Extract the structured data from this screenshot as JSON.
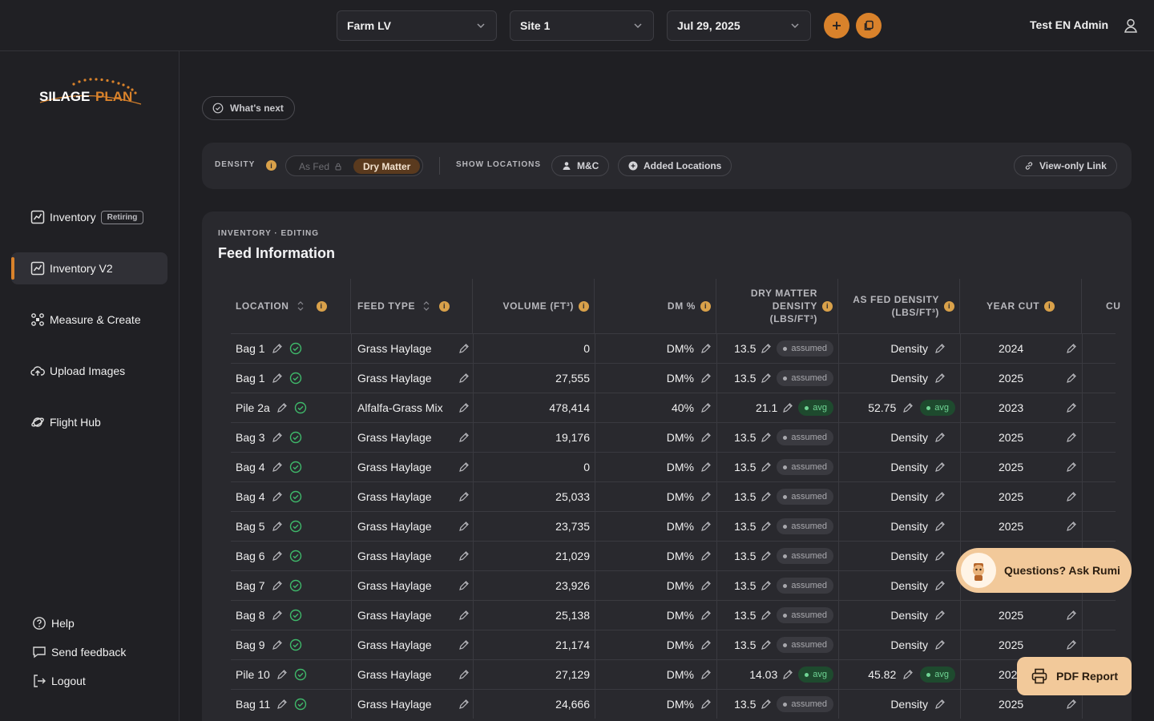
{
  "header": {
    "farm_select": "Farm LV",
    "site_select": "Site 1",
    "date_select": "Jul 29, 2025",
    "user_name": "Test EN Admin"
  },
  "sidebar": {
    "logo_text": "SILAGEPLAN",
    "items": [
      {
        "label": "Inventory",
        "badge": "Retiring"
      },
      {
        "label": "Inventory V2"
      },
      {
        "label": "Measure & Create"
      },
      {
        "label": "Upload Images"
      },
      {
        "label": "Flight Hub"
      }
    ],
    "help": "Help",
    "feedback": "Send feedback",
    "logout": "Logout"
  },
  "whats_next": "What's next",
  "filters": {
    "density_label": "DENSITY",
    "as_fed": "As Fed",
    "dry_matter": "Dry Matter",
    "show_locations_label": "SHOW LOCATIONS",
    "mc": "M&C",
    "added_locations": "Added Locations",
    "view_only_link": "View-only Link"
  },
  "card": {
    "subtitle": "INVENTORY · EDITING",
    "title": "Feed Information"
  },
  "table": {
    "headers": {
      "location": "LOCATION",
      "feed_type": "FEED TYPE",
      "volume": "VOLUME (FT³)",
      "dm": "DM %",
      "dm_density_1": "DRY MATTER",
      "dm_density_2": "DENSITY",
      "dm_density_3": "(LBS/FT³)",
      "af_density_1": "AS FED DENSITY",
      "af_density_2": "(LBS/FT³)",
      "year_cut": "YEAR CUT",
      "cu": "CU"
    },
    "rows": [
      {
        "location": "Bag 1",
        "feed": "Grass Haylage",
        "volume": "0",
        "dm": "DM%",
        "dmd": "13.5",
        "dmd_tag": "assumed",
        "afd": "Density",
        "afd_tag": "",
        "year": "2024"
      },
      {
        "location": "Bag 1",
        "feed": "Grass Haylage",
        "volume": "27,555",
        "dm": "DM%",
        "dmd": "13.5",
        "dmd_tag": "assumed",
        "afd": "Density",
        "afd_tag": "",
        "year": "2025"
      },
      {
        "location": "Pile 2a",
        "feed": "Alfalfa-Grass Mix",
        "volume": "478,414",
        "dm": "40%",
        "dmd": "21.1",
        "dmd_tag": "avg",
        "afd": "52.75",
        "afd_tag": "avg",
        "year": "2023"
      },
      {
        "location": "Bag 3",
        "feed": "Grass Haylage",
        "volume": "19,176",
        "dm": "DM%",
        "dmd": "13.5",
        "dmd_tag": "assumed",
        "afd": "Density",
        "afd_tag": "",
        "year": "2025"
      },
      {
        "location": "Bag 4",
        "feed": "Grass Haylage",
        "volume": "0",
        "dm": "DM%",
        "dmd": "13.5",
        "dmd_tag": "assumed",
        "afd": "Density",
        "afd_tag": "",
        "year": "2025"
      },
      {
        "location": "Bag 4",
        "feed": "Grass Haylage",
        "volume": "25,033",
        "dm": "DM%",
        "dmd": "13.5",
        "dmd_tag": "assumed",
        "afd": "Density",
        "afd_tag": "",
        "year": "2025"
      },
      {
        "location": "Bag 5",
        "feed": "Grass Haylage",
        "volume": "23,735",
        "dm": "DM%",
        "dmd": "13.5",
        "dmd_tag": "assumed",
        "afd": "Density",
        "afd_tag": "",
        "year": "2025"
      },
      {
        "location": "Bag 6",
        "feed": "Grass Haylage",
        "volume": "21,029",
        "dm": "DM%",
        "dmd": "13.5",
        "dmd_tag": "assumed",
        "afd": "Density",
        "afd_tag": "",
        "year": ""
      },
      {
        "location": "Bag 7",
        "feed": "Grass Haylage",
        "volume": "23,926",
        "dm": "DM%",
        "dmd": "13.5",
        "dmd_tag": "assumed",
        "afd": "Density",
        "afd_tag": "",
        "year": ""
      },
      {
        "location": "Bag 8",
        "feed": "Grass Haylage",
        "volume": "25,138",
        "dm": "DM%",
        "dmd": "13.5",
        "dmd_tag": "assumed",
        "afd": "Density",
        "afd_tag": "",
        "year": "2025"
      },
      {
        "location": "Bag 9",
        "feed": "Grass Haylage",
        "volume": "21,174",
        "dm": "DM%",
        "dmd": "13.5",
        "dmd_tag": "assumed",
        "afd": "Density",
        "afd_tag": "",
        "year": "2025"
      },
      {
        "location": "Pile 10",
        "feed": "Grass Haylage",
        "volume": "27,129",
        "dm": "DM%",
        "dmd": "14.03",
        "dmd_tag": "avg",
        "afd": "45.82",
        "afd_tag": "avg",
        "year": "202"
      },
      {
        "location": "Bag 11",
        "feed": "Grass Haylage",
        "volume": "24,666",
        "dm": "DM%",
        "dmd": "13.5",
        "dmd_tag": "assumed",
        "afd": "Density",
        "afd_tag": "",
        "year": "2025"
      }
    ]
  },
  "rumi_label": "Questions? Ask Rumi",
  "pdf_label": "PDF Report",
  "colors": {
    "accent": "#d9822b",
    "success": "#3fb86a",
    "cta": "#f2c99a"
  }
}
